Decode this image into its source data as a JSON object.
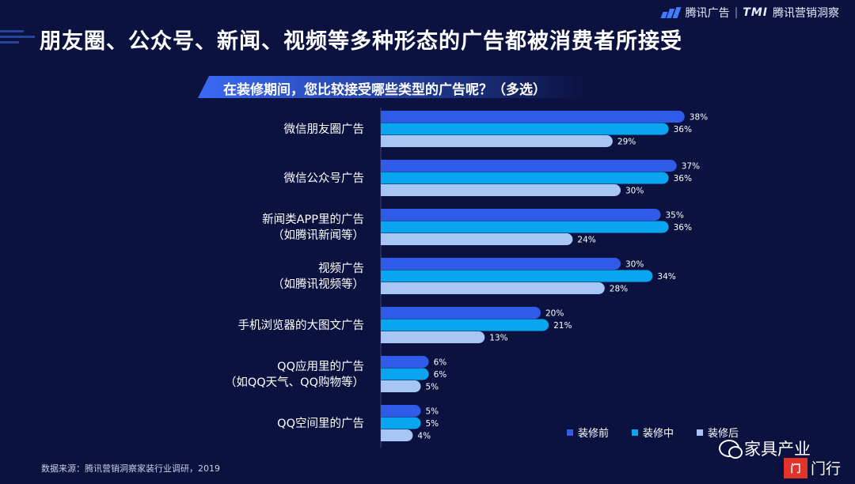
{
  "brand": {
    "name": "腾讯广告",
    "separator": "|",
    "tmi": "TMI",
    "product": "腾讯营销洞察",
    "accent": "#3f7cff"
  },
  "header": {
    "title": "朋友圈、公众号、新闻、视频等多种形态的广告都被消费者所接受"
  },
  "question": "在装修期间，您比较接受哪些类型的广告呢？（多选）",
  "source": "数据来源：腾讯营销洞察家装行业调研，2019",
  "watermark": {
    "text": "家具产业",
    "icon": "wechat-icon",
    "logo_box": "门",
    "logo_text": "门行"
  },
  "chart_data": {
    "type": "bar",
    "orientation": "horizontal",
    "categories": [
      [
        "微信朋友圈广告"
      ],
      [
        "微信公众号广告"
      ],
      [
        "新闻类APP里的广告",
        "（如腾讯新闻等）"
      ],
      [
        "视频广告",
        "（如腾讯视频等）"
      ],
      [
        "手机浏览器的大图文广告"
      ],
      [
        "QQ应用里的广告",
        "（如QQ天气、QQ购物等）"
      ],
      [
        "QQ空间里的广告"
      ]
    ],
    "series": [
      {
        "name": "装修前",
        "color": "#2f5be8",
        "values": [
          38,
          37,
          35,
          30,
          20,
          6,
          5
        ]
      },
      {
        "name": "装修中",
        "color": "#0aa5f0",
        "values": [
          36,
          36,
          36,
          34,
          21,
          6,
          5
        ]
      },
      {
        "name": "装修后",
        "color": "#a8c6f5",
        "values": [
          29,
          30,
          24,
          28,
          13,
          5,
          4
        ]
      }
    ],
    "value_suffix": "%",
    "legend_position": "bottom-right",
    "grid": false
  }
}
